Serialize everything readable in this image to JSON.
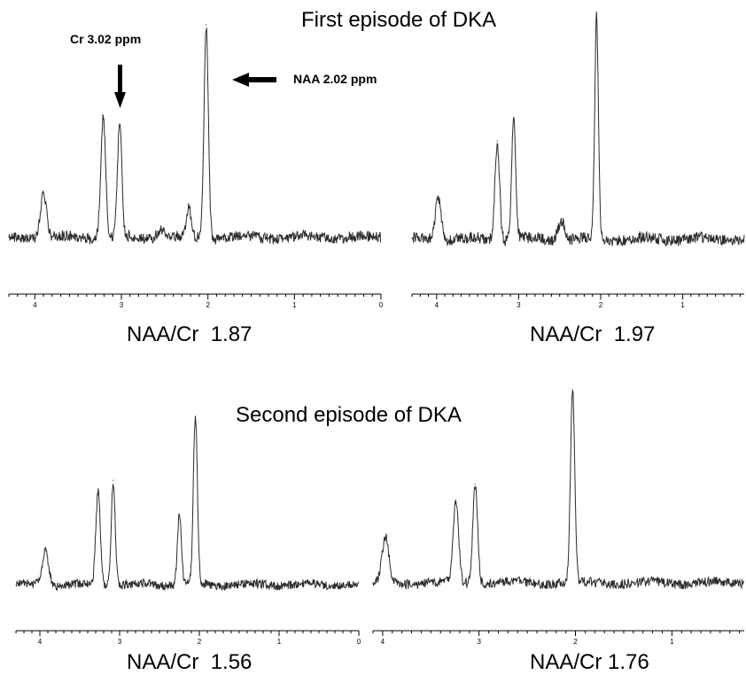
{
  "headings": {
    "first": "First episode of DKA",
    "second": "Second episode of DKA"
  },
  "annotations": {
    "cr": "Cr 3.02 ppm",
    "naa": "NAA 2.02 ppm"
  },
  "colors": {
    "trace": "#2a2a2a",
    "axis": "#000000",
    "text": "#000000"
  },
  "chart_data": [
    {
      "type": "line",
      "x_reversed": true,
      "xlim": [
        4.3,
        0
      ],
      "x_ticks": [
        "4",
        "3",
        "2",
        "1",
        "0"
      ],
      "ratio": {
        "name": "NAA/Cr",
        "value": "1.87"
      },
      "peaks": [
        {
          "x": 3.9,
          "y": 0.21,
          "w": 0.035
        },
        {
          "x": 3.21,
          "y": 0.57,
          "w": 0.028
        },
        {
          "x": 3.02,
          "y": 0.53,
          "w": 0.025
        },
        {
          "x": 2.55,
          "y": 0.04,
          "w": 0.04
        },
        {
          "x": 2.22,
          "y": 0.14,
          "w": 0.025
        },
        {
          "x": 2.02,
          "y": 1.0,
          "w": 0.025
        }
      ]
    },
    {
      "type": "line",
      "x_reversed": true,
      "xlim": [
        4.3,
        0.25
      ],
      "x_ticks": [
        "4",
        "3",
        "2",
        "1"
      ],
      "ratio": {
        "name": "NAA/Cr",
        "value": "1.97"
      },
      "peaks": [
        {
          "x": 3.98,
          "y": 0.19,
          "w": 0.035
        },
        {
          "x": 3.26,
          "y": 0.44,
          "w": 0.028
        },
        {
          "x": 3.06,
          "y": 0.54,
          "w": 0.025
        },
        {
          "x": 2.48,
          "y": 0.09,
          "w": 0.04
        },
        {
          "x": 2.05,
          "y": 1.0,
          "w": 0.022
        }
      ]
    },
    {
      "type": "line",
      "x_reversed": true,
      "xlim": [
        4.3,
        0
      ],
      "x_ticks": [
        "4",
        "3",
        "2",
        "1",
        "0"
      ],
      "ratio": {
        "name": "NAA/Cr",
        "value": "1.56"
      },
      "peaks": [
        {
          "x": 3.93,
          "y": 0.2,
          "w": 0.04
        },
        {
          "x": 3.27,
          "y": 0.55,
          "w": 0.028
        },
        {
          "x": 3.08,
          "y": 0.62,
          "w": 0.025
        },
        {
          "x": 2.25,
          "y": 0.42,
          "w": 0.025
        },
        {
          "x": 2.05,
          "y": 1.0,
          "w": 0.025
        }
      ]
    },
    {
      "type": "line",
      "x_reversed": true,
      "xlim": [
        4.1,
        0.25
      ],
      "x_ticks": [
        "4",
        "3",
        "2",
        "1"
      ],
      "ratio": {
        "name": "NAA/Cr",
        "value": "1.76"
      },
      "peaks": [
        {
          "x": 3.97,
          "y": 0.23,
          "w": 0.035
        },
        {
          "x": 3.24,
          "y": 0.41,
          "w": 0.028
        },
        {
          "x": 3.04,
          "y": 0.51,
          "w": 0.025
        },
        {
          "x": 2.03,
          "y": 1.0,
          "w": 0.022
        }
      ]
    }
  ]
}
